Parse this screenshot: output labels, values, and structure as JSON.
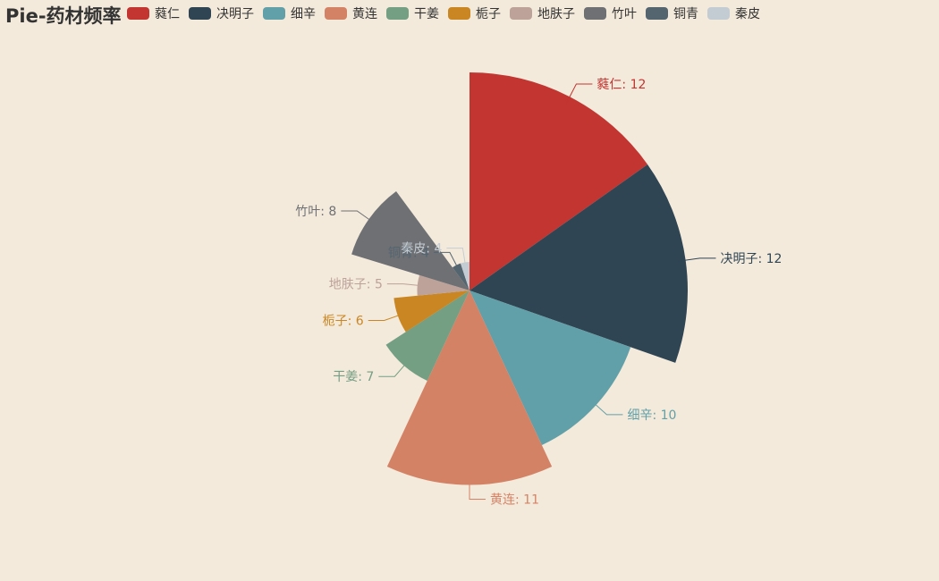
{
  "chart_data": {
    "type": "pie",
    "rose_type": "radius",
    "title": "Pie-药材频率",
    "legend_position": "top",
    "categories": [
      "蕤仁",
      "决明子",
      "细辛",
      "黄连",
      "干姜",
      "栀子",
      "地肤子",
      "竹叶",
      "铜青",
      "秦皮"
    ],
    "values": [
      12,
      12,
      10,
      11,
      7,
      6,
      5,
      8,
      4,
      4
    ],
    "colors": [
      "#c23531",
      "#2f4554",
      "#61a0a8",
      "#d48265",
      "#749f83",
      "#ca8622",
      "#bda29a",
      "#6e7074",
      "#546570",
      "#c4ccd3"
    ],
    "label_separator": ": "
  }
}
